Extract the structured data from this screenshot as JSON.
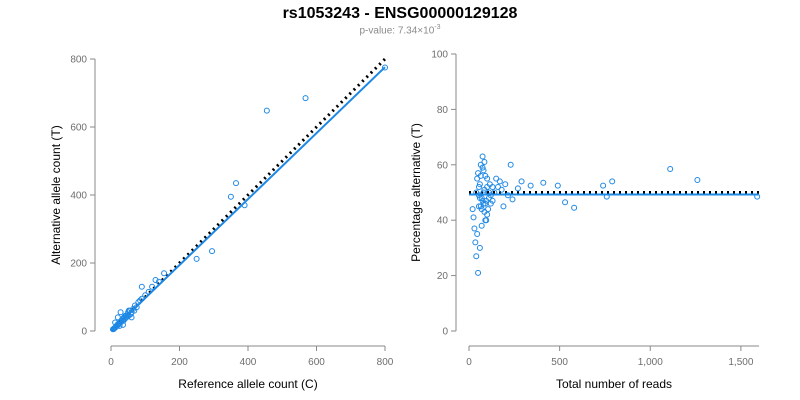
{
  "title": "rs1053243 - ENSG00000129128",
  "subtitle": {
    "prefix": "p-value: 7.34×10",
    "exponent": "-3"
  },
  "colors": {
    "points": "#1e88e5",
    "fit_line": "#1e88e5",
    "expected_line": "#000000",
    "axis": "#8a8a8a"
  },
  "chart_data": [
    {
      "type": "scatter",
      "xlabel": "Reference allele count (C)",
      "ylabel": "Alternative allele count (T)",
      "xlim": [
        0,
        800
      ],
      "ylim": [
        0,
        800
      ],
      "xticks": [
        0,
        200,
        400,
        600,
        800
      ],
      "xtick_labels": [
        "0",
        "200",
        "400",
        "600",
        "800"
      ],
      "yticks": [
        0,
        200,
        400,
        600,
        800
      ],
      "ytick_labels": [
        "0",
        "200",
        "400",
        "600",
        "800"
      ],
      "expected_line": {
        "x": [
          0,
          800
        ],
        "y": [
          0,
          800
        ],
        "style": "dotted"
      },
      "fit_line": {
        "x": [
          0,
          800
        ],
        "y": [
          0,
          776
        ],
        "style": "solid"
      },
      "x": [
        800,
        568,
        455,
        365,
        350,
        390,
        295,
        250,
        155,
        140,
        130,
        120,
        110,
        100,
        90,
        90,
        85,
        80,
        75,
        70,
        68,
        65,
        60,
        58,
        55,
        52,
        50,
        48,
        45,
        42,
        40,
        38,
        35,
        33,
        30,
        28,
        25,
        22,
        20,
        18,
        16,
        14,
        12,
        10,
        8,
        6,
        12,
        20,
        28,
        36,
        44,
        52,
        60,
        25,
        35
      ],
      "y": [
        775,
        685,
        648,
        435,
        395,
        370,
        235,
        212,
        170,
        145,
        150,
        130,
        115,
        105,
        95,
        130,
        90,
        85,
        70,
        75,
        60,
        65,
        55,
        50,
        60,
        45,
        55,
        45,
        40,
        45,
        35,
        40,
        30,
        35,
        30,
        25,
        25,
        20,
        20,
        15,
        15,
        12,
        10,
        8,
        6,
        5,
        25,
        40,
        55,
        30,
        45,
        60,
        40,
        15,
        18
      ]
    },
    {
      "type": "scatter",
      "xlabel": "Total number of reads",
      "ylabel": "Percentage alternative (T)",
      "xlim": [
        0,
        1600
      ],
      "ylim": [
        0,
        100
      ],
      "xticks": [
        0,
        500,
        1000,
        1500
      ],
      "xtick_labels": [
        "0",
        "500",
        "1,000",
        "1,500"
      ],
      "yticks": [
        0,
        20,
        40,
        60,
        80,
        100
      ],
      "ytick_labels": [
        "0",
        "20",
        "40",
        "60",
        "80",
        "100"
      ],
      "expected_line": {
        "x": [
          0,
          1600
        ],
        "y": [
          50,
          50
        ],
        "style": "dotted"
      },
      "fit_line": {
        "x": [
          0,
          1600
        ],
        "y": [
          49.3,
          49.3
        ],
        "style": "solid"
      },
      "x": [
        1590,
        1260,
        1110,
        790,
        760,
        740,
        580,
        530,
        490,
        410,
        340,
        290,
        270,
        240,
        230,
        215,
        200,
        190,
        180,
        170,
        160,
        150,
        140,
        130,
        120,
        115,
        110,
        105,
        100,
        95,
        90,
        85,
        80,
        75,
        70,
        65,
        60,
        55,
        50,
        45,
        40,
        35,
        30,
        25,
        20,
        70,
        80,
        90,
        100,
        60,
        55,
        65,
        75,
        85,
        45,
        50,
        40,
        55,
        60,
        70,
        80,
        90,
        100,
        110,
        120,
        130,
        65,
        75,
        85,
        95
      ],
      "y": [
        48.5,
        54.5,
        58.5,
        54,
        48.5,
        52.5,
        44.5,
        46.5,
        52.5,
        53.5,
        52.5,
        54,
        51.5,
        47.5,
        60,
        49,
        53,
        45,
        51,
        54,
        52,
        55,
        50,
        47,
        46,
        53,
        48,
        44,
        42,
        40,
        56,
        51,
        58,
        63,
        38,
        60,
        30,
        45,
        21,
        35,
        27,
        32,
        37,
        41,
        44,
        48,
        50,
        46,
        52,
        53,
        49,
        45,
        47,
        43,
        55,
        57,
        50,
        52,
        48,
        44,
        46,
        40,
        55,
        50,
        49,
        52,
        56,
        59,
        61,
        47
      ]
    }
  ]
}
